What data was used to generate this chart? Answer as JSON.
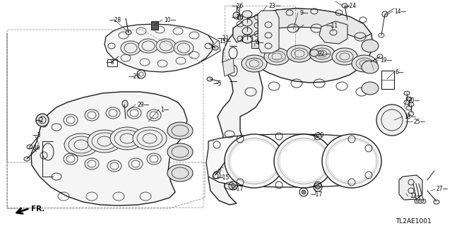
{
  "bg_color": "#ffffff",
  "line_color": "#1a1a1a",
  "label_color": "#000000",
  "diagram_code": "TL2AE1001",
  "figsize": [
    6.4,
    3.2
  ],
  "dpi": 100
}
